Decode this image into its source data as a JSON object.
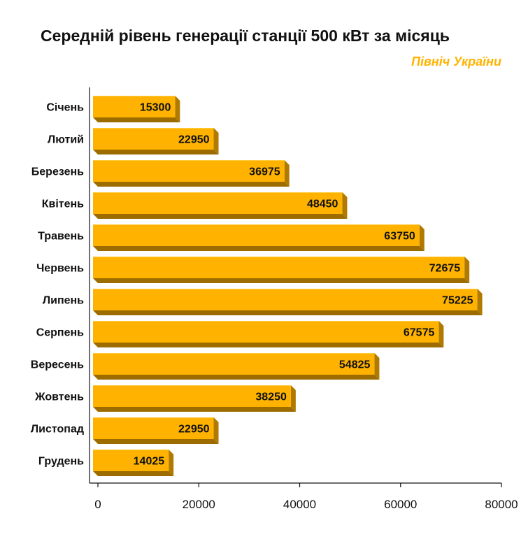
{
  "title": "Середній рівень генерації станції 500 кВт за місяць",
  "subtitle": "Північ України",
  "colors": {
    "bar_face": "#FFB300",
    "bar_top": "#FFCB3D",
    "bar_side": "#B07A00",
    "bar_bottom": "#9C6C00"
  },
  "chart_data": {
    "type": "bar",
    "orientation": "horizontal",
    "categories": [
      "Січень",
      "Лютий",
      "Березень",
      "Квітень",
      "Травень",
      "Червень",
      "Липень",
      "Серпень",
      "Вересень",
      "Жовтень",
      "Листопад",
      "Грудень"
    ],
    "values": [
      15300,
      22950,
      36975,
      48450,
      63750,
      72675,
      75225,
      67575,
      54825,
      38250,
      22950,
      14025
    ],
    "value_labels": [
      "15300",
      "22950",
      "36975",
      "48450",
      "63750",
      "72675",
      "75225",
      "67575",
      "54825",
      "38250",
      "22950",
      "14025"
    ],
    "xlim": [
      0,
      80000
    ],
    "x_ticks": [
      0,
      20000,
      40000,
      60000,
      80000
    ],
    "x_tick_labels": [
      "0",
      "20000",
      "40000",
      "60000",
      "80000"
    ],
    "xlabel": "",
    "ylabel": "",
    "grid": false,
    "legend": "none"
  }
}
